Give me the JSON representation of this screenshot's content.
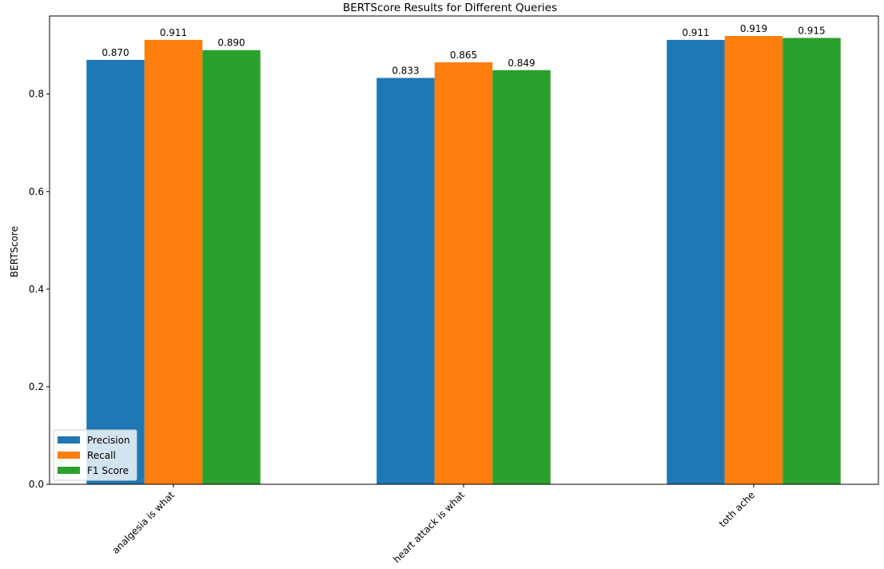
{
  "chart_data": {
    "type": "bar",
    "title": "BERTScore Results for Different Queries",
    "xlabel": "",
    "ylabel": "BERTScore",
    "categories": [
      "analgesia is what",
      "heart attack is what",
      "toth ache"
    ],
    "series": [
      {
        "name": "Precision",
        "values": [
          0.87,
          0.833,
          0.911
        ],
        "color": "#1f77b4"
      },
      {
        "name": "Recall",
        "values": [
          0.911,
          0.865,
          0.919
        ],
        "color": "#ff7f0e"
      },
      {
        "name": "F1 Score",
        "values": [
          0.89,
          0.849,
          0.915
        ],
        "color": "#2ca02c"
      }
    ],
    "ylim": [
      0,
      0.96
    ],
    "yticks": [
      0.0,
      0.2,
      0.4,
      0.6,
      0.8
    ],
    "ytick_labels": [
      "0.0",
      "0.2",
      "0.4",
      "0.6",
      "0.8"
    ],
    "value_labels": [
      [
        "0.870",
        "0.833",
        "0.911"
      ],
      [
        "0.911",
        "0.865",
        "0.919"
      ],
      [
        "0.890",
        "0.849",
        "0.915"
      ]
    ],
    "legend_position": "lower-left",
    "grid": false,
    "xtick_rotation": 45
  }
}
